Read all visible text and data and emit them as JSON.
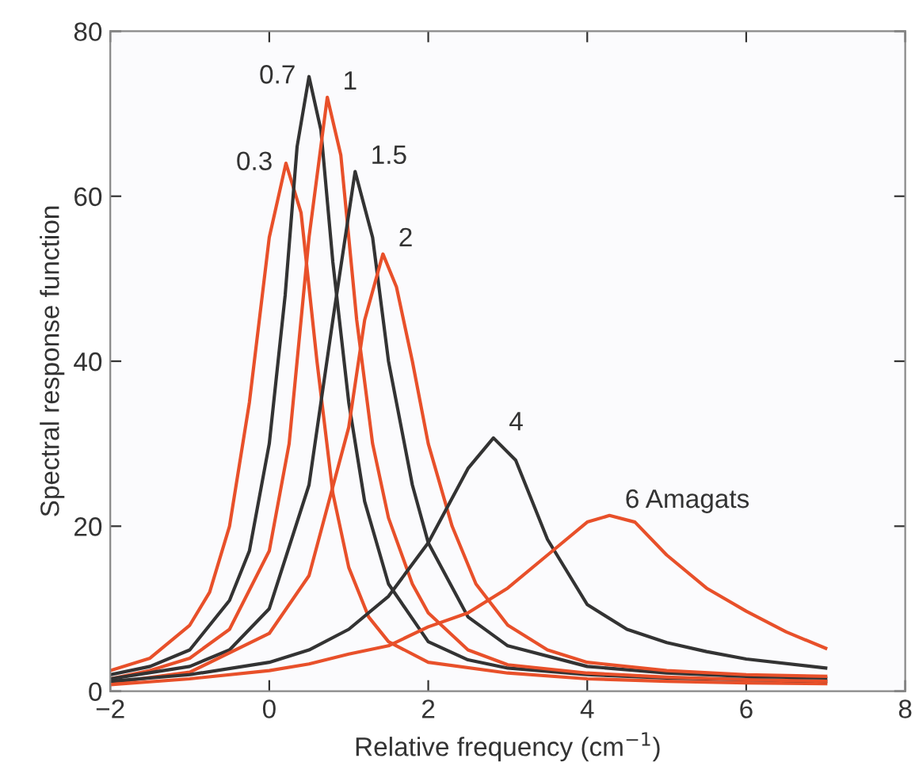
{
  "chart_data": {
    "type": "line",
    "xlabel": "Relative frequency (cm$^{−1}$)",
    "ylabel": "Spectral response function",
    "xlim": [
      -2,
      8
    ],
    "ylim": [
      0,
      80
    ],
    "xticks": [
      {
        "value": -2,
        "label": "−2"
      },
      0,
      2,
      4,
      6,
      8
    ],
    "yticks": [
      0,
      20,
      40,
      60,
      80
    ],
    "grid": false,
    "marker": "none",
    "line_style": "solid",
    "series": [
      {
        "color": "#e8502a",
        "x": [
          -2,
          -1.5,
          -1,
          -0.75,
          -0.5,
          -0.25,
          0,
          0.21,
          0.4,
          0.6,
          0.8,
          1,
          1.25,
          1.5,
          2,
          3,
          4,
          5,
          6,
          7
        ],
        "values": [
          2.5,
          4,
          8,
          12,
          20,
          35,
          55,
          64,
          58,
          40,
          24,
          15,
          9,
          6,
          3.5,
          2.2,
          1.5,
          1.2,
          1,
          0.9
        ]
      },
      {
        "color": "#333333",
        "x": [
          -2,
          -1.5,
          -1,
          -0.5,
          -0.25,
          0,
          0.2,
          0.35,
          0.5,
          0.65,
          0.8,
          1,
          1.2,
          1.5,
          2,
          2.5,
          3,
          4,
          5,
          6,
          7
        ],
        "values": [
          2,
          3,
          5,
          11,
          17,
          30,
          48,
          66,
          74.5,
          68,
          52,
          35,
          23,
          13,
          6,
          3.8,
          2.8,
          2,
          1.6,
          1.4,
          1.2
        ]
      },
      {
        "color": "#e8502a",
        "x": [
          -2,
          -1.5,
          -1,
          -0.5,
          0,
          0.25,
          0.5,
          0.73,
          0.9,
          1.1,
          1.3,
          1.5,
          1.8,
          2,
          2.5,
          3,
          4,
          5,
          6,
          7
        ],
        "values": [
          1.5,
          2.5,
          4,
          7.5,
          17,
          30,
          55,
          72,
          65,
          45,
          30,
          21,
          13,
          9.5,
          5,
          3.2,
          2.2,
          1.7,
          1.4,
          1.2
        ]
      },
      {
        "color": "#333333",
        "x": [
          -2,
          -1,
          -0.5,
          0,
          0.5,
          0.8,
          1.08,
          1.3,
          1.5,
          1.8,
          2,
          2.5,
          3,
          4,
          5,
          6,
          7
        ],
        "values": [
          1.5,
          3,
          5,
          10,
          25,
          45,
          63,
          55,
          40,
          25,
          18,
          9,
          5.5,
          3,
          2.2,
          1.8,
          1.6
        ]
      },
      {
        "color": "#e8502a",
        "x": [
          -2,
          -1,
          0,
          0.5,
          1,
          1.2,
          1.43,
          1.6,
          1.8,
          2,
          2.3,
          2.6,
          3,
          3.5,
          4,
          5,
          6,
          7
        ],
        "values": [
          1,
          2.3,
          7,
          14,
          32,
          45,
          53,
          49,
          40,
          30,
          20,
          13,
          8,
          5,
          3.5,
          2.5,
          2,
          1.8
        ]
      },
      {
        "color": "#333333",
        "x": [
          -2,
          -1,
          0,
          0.5,
          1,
          1.5,
          2,
          2.5,
          2.82,
          3.1,
          3.5,
          4,
          4.5,
          5,
          5.5,
          6,
          7
        ],
        "values": [
          1.2,
          2,
          3.5,
          5,
          7.5,
          11.5,
          18,
          27,
          30.7,
          28,
          18.4,
          10.5,
          7.5,
          5.9,
          4.8,
          3.9,
          2.8
        ]
      },
      {
        "color": "#e8502a",
        "x": [
          -2,
          -1,
          0,
          0.5,
          1,
          1.5,
          2,
          2.5,
          3,
          3.5,
          4,
          4.28,
          4.6,
          5,
          5.5,
          6,
          6.5,
          7
        ],
        "values": [
          0.8,
          1.5,
          2.5,
          3.3,
          4.5,
          5.5,
          7.8,
          9.5,
          12.5,
          16.5,
          20.5,
          21.3,
          20.5,
          16.5,
          12.5,
          9.7,
          7.2,
          5.2
        ]
      }
    ],
    "annotations": [
      {
        "text": "0.3",
        "x": 0.21,
        "y": 64
      },
      {
        "text": "0.7",
        "x": 0.5,
        "y": 74.5
      },
      {
        "text": "1",
        "x": 0.73,
        "y": 72
      },
      {
        "text": "1.5",
        "x": 1.08,
        "y": 63
      },
      {
        "text": "2",
        "x": 1.43,
        "y": 53
      },
      {
        "text": "4",
        "x": 2.82,
        "y": 30.7
      },
      {
        "text": "6 Amagats",
        "x": 4.28,
        "y": 21.3
      }
    ]
  }
}
